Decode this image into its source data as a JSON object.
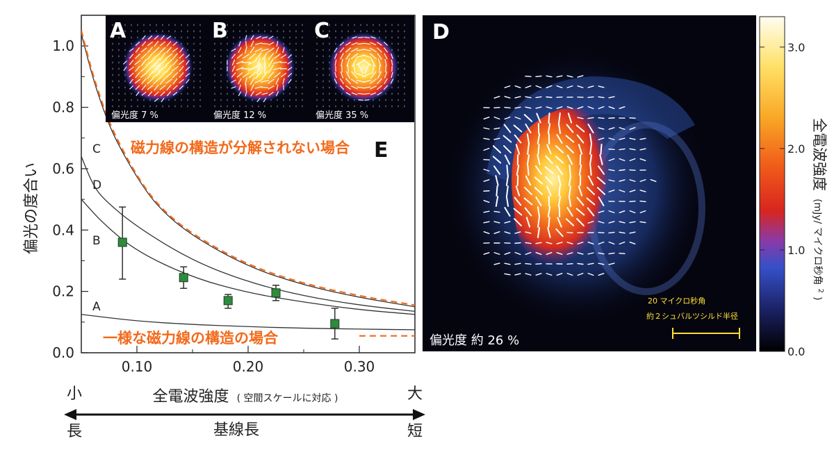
{
  "chart_data": [
    {
      "type": "line",
      "panel": "E",
      "xlabel_main": "全電波強度",
      "xlabel_sub": "( 空間スケールに対応 )",
      "ylabel": "偏光の度合い",
      "xlim": [
        0.05,
        0.35
      ],
      "ylim": [
        0.0,
        1.1
      ],
      "xticks": [
        "0.10",
        "0.20",
        "0.30"
      ],
      "xtick_values": [
        0.1,
        0.2,
        0.3
      ],
      "yticks": [
        "0.0",
        "0.2",
        "0.4",
        "0.6",
        "0.8",
        "1.0"
      ],
      "ytick_values": [
        0.0,
        0.2,
        0.4,
        0.6,
        0.8,
        1.0
      ],
      "series": [
        {
          "name": "A",
          "x": [
            0.05,
            0.1,
            0.15,
            0.2,
            0.25,
            0.3,
            0.35
          ],
          "y": [
            0.125,
            0.103,
            0.092,
            0.085,
            0.08,
            0.077,
            0.075
          ]
        },
        {
          "name": "B",
          "x": [
            0.05,
            0.07,
            0.1,
            0.15,
            0.2,
            0.25,
            0.3,
            0.35
          ],
          "y": [
            0.5,
            0.42,
            0.33,
            0.245,
            0.195,
            0.165,
            0.14,
            0.125
          ]
        },
        {
          "name": "D",
          "x": [
            0.05,
            0.06,
            0.07,
            0.1,
            0.15,
            0.2,
            0.25,
            0.3,
            0.35
          ],
          "y": [
            0.64,
            0.55,
            0.5,
            0.41,
            0.3,
            0.23,
            0.185,
            0.155,
            0.135
          ]
        },
        {
          "name": "C",
          "x": [
            0.05,
            0.06,
            0.07,
            0.08,
            0.1,
            0.12,
            0.15,
            0.2,
            0.25,
            0.3,
            0.35
          ],
          "y": [
            1.04,
            0.9,
            0.79,
            0.7,
            0.57,
            0.47,
            0.38,
            0.28,
            0.22,
            0.18,
            0.15
          ]
        }
      ],
      "reference_lines": [
        {
          "x": [
            0.05,
            0.06,
            0.07,
            0.08,
            0.1,
            0.12,
            0.15,
            0.2,
            0.25,
            0.3,
            0.35
          ],
          "y": [
            1.05,
            0.91,
            0.8,
            0.71,
            0.575,
            0.475,
            0.385,
            0.285,
            0.225,
            0.185,
            0.155
          ]
        },
        {
          "x": [
            0.3,
            0.35
          ],
          "y": [
            0.055,
            0.055
          ]
        }
      ],
      "points": [
        {
          "x": 0.087,
          "y": 0.36,
          "ymin": 0.24,
          "ymax": 0.475
        },
        {
          "x": 0.142,
          "y": 0.245,
          "ymin": 0.21,
          "ymax": 0.28
        },
        {
          "x": 0.182,
          "y": 0.17,
          "ymin": 0.145,
          "ymax": 0.19
        },
        {
          "x": 0.225,
          "y": 0.195,
          "ymin": 0.17,
          "ymax": 0.22
        },
        {
          "x": 0.278,
          "y": 0.095,
          "ymin": 0.045,
          "ymax": 0.145
        }
      ],
      "annotations": {
        "unresolved": "磁力線の構造が分解されない場合",
        "uniform": "一様な磁力線の構造の場合",
        "panel_letter": "E"
      },
      "bottom_scale": {
        "small": "小",
        "large": "大",
        "long": "長",
        "short": "短",
        "baseline": "基線長"
      }
    },
    {
      "type": "heatmap",
      "panel": "D",
      "colorbar_label": "全電波強度 (mJy/ マイクロ秒角²)",
      "colorbar_label_main": "全電波強度",
      "colorbar_label_unit": "(mJy/ マイクロ秒角",
      "colorbar_label_sup": "2",
      "colorbar_label_close": ")",
      "colorbar_range": [
        0.0,
        3.3
      ],
      "colorbar_ticks": [
        "0.0",
        "1.0",
        "2.0",
        "3.0"
      ],
      "colorbar_tick_values": [
        0.0,
        1.0,
        2.0,
        3.0
      ],
      "polarization_label": "偏光度 約 26 %",
      "scalebar_line1": "20 マイクロ秒角",
      "scalebar_line2": "約２シュバルツシルド半径",
      "panel_letter": "D"
    }
  ],
  "insets": [
    {
      "letter": "A",
      "label": "偏光度 7 %",
      "mode": "uniform"
    },
    {
      "letter": "B",
      "label": "偏光度 12 %",
      "mode": "mixed"
    },
    {
      "letter": "C",
      "label": "偏光度 35 %",
      "mode": "swirl"
    }
  ],
  "colors": {
    "orange": "#f26a1b",
    "curve": "#333333",
    "marker_fill": "#2e8b3e",
    "panel_bg": "#050510"
  }
}
